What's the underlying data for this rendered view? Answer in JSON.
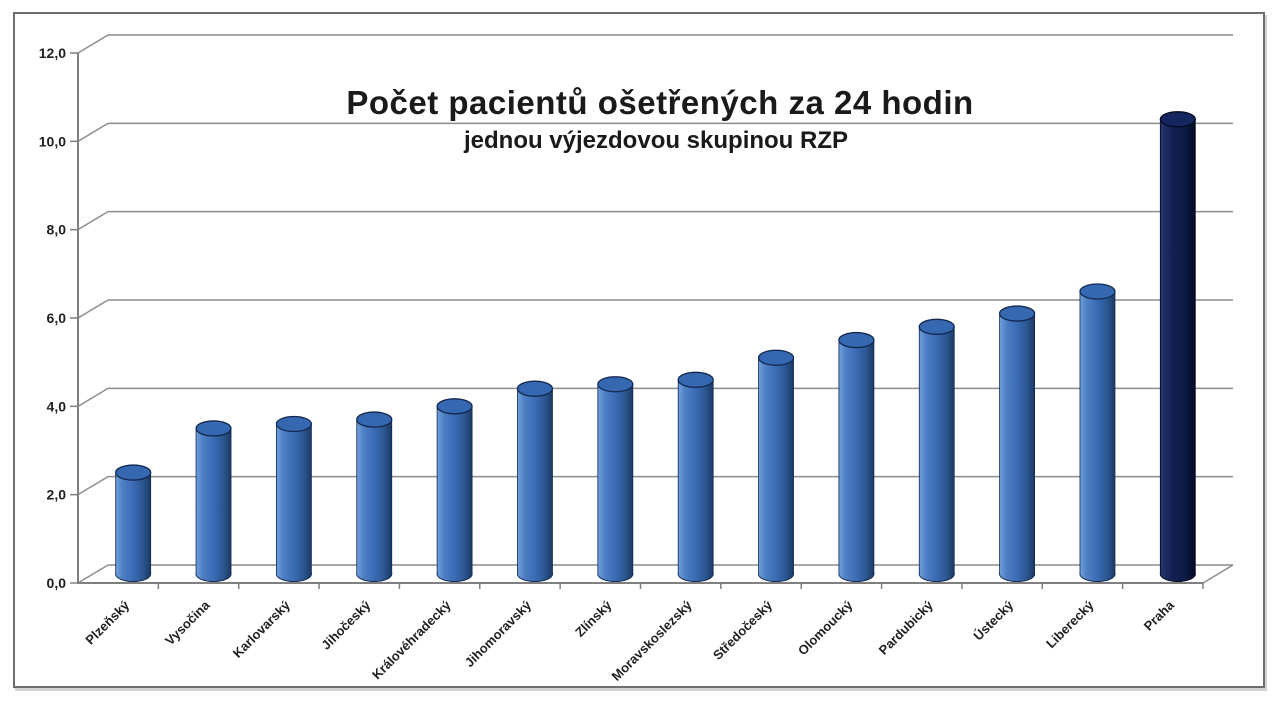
{
  "chart_data": {
    "type": "bar",
    "style": "3d-cylinder",
    "title": "Počet pacientů ošetřených za 24 hodin",
    "subtitle": "jednou výjezdovou skupinou RZP",
    "categories": [
      "Plzeňský",
      "Vysočina",
      "Karlovarský",
      "Jihočeský",
      "Královéhradecký",
      "Jihomoravský",
      "Zlínský",
      "Moravskoslezský",
      "Středočeský",
      "Olomoucký",
      "Pardubický",
      "Ústecký",
      "Liberecký",
      "Praha"
    ],
    "values": [
      2.5,
      3.5,
      3.6,
      3.7,
      4.0,
      4.4,
      4.5,
      4.6,
      5.1,
      5.5,
      5.8,
      6.1,
      6.6,
      10.5
    ],
    "xlabel": "",
    "ylabel": "",
    "ylim": [
      0,
      12
    ],
    "ytick_step": 2,
    "ytick_labels": [
      "0,0",
      "2,0",
      "4,0",
      "6,0",
      "8,0",
      "10,0",
      "12,0"
    ],
    "grid": true,
    "legend": false,
    "highlight_index": 13,
    "colors": {
      "bar": "#3A6BB4",
      "bar_highlight_side": "#6FA0DC",
      "bar_dark_side": "#1B3A64",
      "bar_top": "#3568B0",
      "bar_outline": "#13294F",
      "praha_bar": "#0D1A45",
      "praha_top": "#15265E",
      "praha_outline": "#04091F",
      "gridline": "#8c8c8c",
      "axis": "#7f7f7f",
      "text": "#1F1F1F",
      "background": "#FFFFFF"
    }
  }
}
